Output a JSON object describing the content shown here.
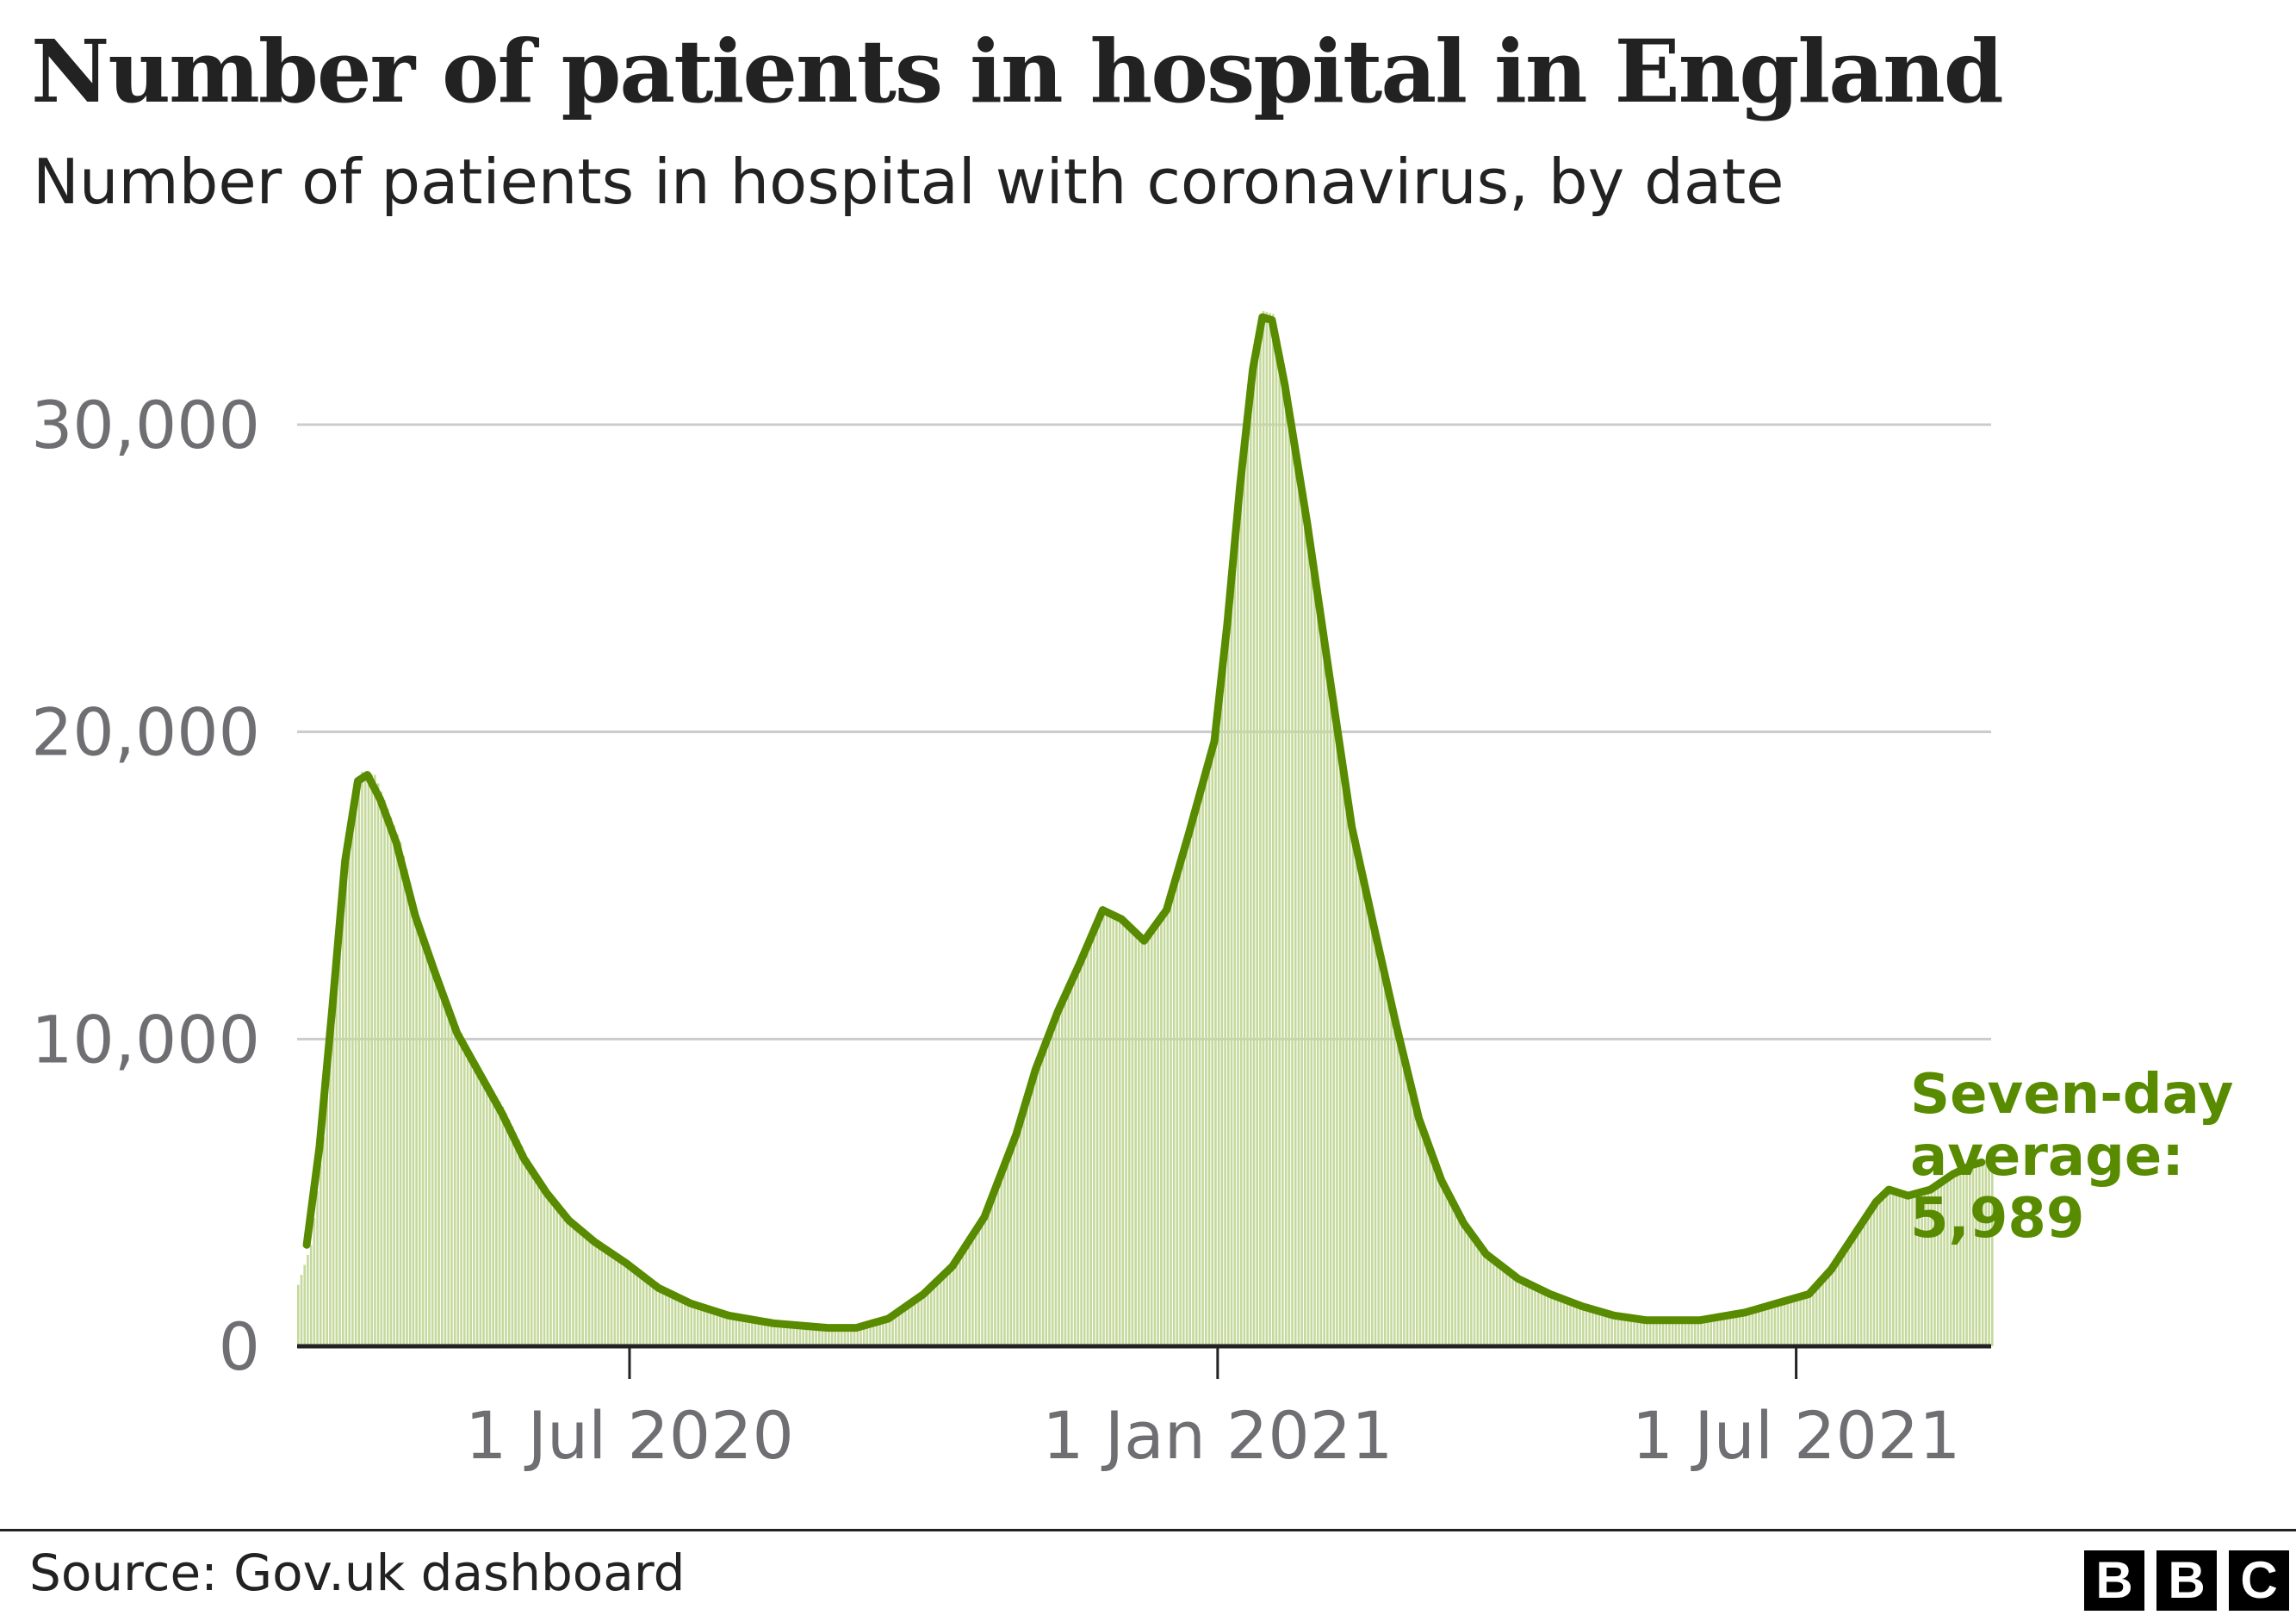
{
  "title": "Number of patients in hospital in England",
  "subtitle": "Number of patients in hospital with coronavirus, by date",
  "source": "Source: Gov.uk dashboard",
  "logo": {
    "letters": [
      "B",
      "B",
      "C"
    ]
  },
  "colors": {
    "bars": "#c5d99c",
    "line": "#588b00",
    "annotation": "#588b00",
    "grid": "#cccccc",
    "axis": "#222222",
    "tick_text": "#6e6e73"
  },
  "chart_data": {
    "type": "bar",
    "title": "Number of patients in hospital in England",
    "subtitle": "Number of patients in hospital with coronavirus, by date",
    "xlabel": "",
    "ylabel": "",
    "x_range": [
      "2020-03-19",
      "2021-08-31"
    ],
    "ylim": [
      0,
      35000
    ],
    "grid": true,
    "y_ticks": [
      {
        "value": 0,
        "label": "0"
      },
      {
        "value": 10000,
        "label": "10,000"
      },
      {
        "value": 20000,
        "label": "20,000"
      },
      {
        "value": 30000,
        "label": "30,000"
      }
    ],
    "x_ticks": [
      {
        "date": "2020-07-01",
        "label": "1 Jul 2020"
      },
      {
        "date": "2021-01-01",
        "label": "1 Jan 2021"
      },
      {
        "date": "2021-07-01",
        "label": "1 Jul 2021"
      }
    ],
    "series": [
      {
        "type": "bar",
        "granularity": "daily",
        "points": [
          [
            "2020-03-19",
            2000
          ],
          [
            "2020-03-23",
            3300
          ],
          [
            "2020-03-27",
            6800
          ],
          [
            "2020-03-31",
            12500
          ],
          [
            "2020-04-04",
            16500
          ],
          [
            "2020-04-08",
            18700
          ],
          [
            "2020-04-12",
            18600
          ],
          [
            "2020-04-16",
            17500
          ],
          [
            "2020-04-20",
            16400
          ],
          [
            "2020-04-25",
            14200
          ],
          [
            "2020-05-01",
            12300
          ],
          [
            "2020-05-08",
            10400
          ],
          [
            "2020-05-15",
            9000
          ],
          [
            "2020-05-22",
            7800
          ],
          [
            "2020-05-29",
            6300
          ],
          [
            "2020-06-05",
            5000
          ],
          [
            "2020-06-12",
            4100
          ],
          [
            "2020-06-20",
            3400
          ],
          [
            "2020-06-30",
            2700
          ],
          [
            "2020-07-10",
            1900
          ],
          [
            "2020-07-20",
            1400
          ],
          [
            "2020-08-01",
            1000
          ],
          [
            "2020-08-15",
            750
          ],
          [
            "2020-09-01",
            600
          ],
          [
            "2020-09-10",
            600
          ],
          [
            "2020-09-20",
            900
          ],
          [
            "2020-10-01",
            1700
          ],
          [
            "2020-10-10",
            2600
          ],
          [
            "2020-10-20",
            4200
          ],
          [
            "2020-10-30",
            6900
          ],
          [
            "2020-11-05",
            9000
          ],
          [
            "2020-11-12",
            11000
          ],
          [
            "2020-11-19",
            12600
          ],
          [
            "2020-11-26",
            14300
          ],
          [
            "2020-12-02",
            14000
          ],
          [
            "2020-12-09",
            13200
          ],
          [
            "2020-12-16",
            14300
          ],
          [
            "2020-12-23",
            16800
          ],
          [
            "2020-12-31",
            20000
          ],
          [
            "2021-01-04",
            24000
          ],
          [
            "2021-01-08",
            28500
          ],
          [
            "2021-01-12",
            32000
          ],
          [
            "2021-01-15",
            33700
          ],
          [
            "2021-01-18",
            33600
          ],
          [
            "2021-01-22",
            31500
          ],
          [
            "2021-01-29",
            27000
          ],
          [
            "2021-02-05",
            22000
          ],
          [
            "2021-02-12",
            17000
          ],
          [
            "2021-02-19",
            13800
          ],
          [
            "2021-02-26",
            10500
          ],
          [
            "2021-03-05",
            7500
          ],
          [
            "2021-03-12",
            5500
          ],
          [
            "2021-03-19",
            4100
          ],
          [
            "2021-03-26",
            3000
          ],
          [
            "2021-04-05",
            2200
          ],
          [
            "2021-04-15",
            1700
          ],
          [
            "2021-04-25",
            1300
          ],
          [
            "2021-05-05",
            1000
          ],
          [
            "2021-05-15",
            850
          ],
          [
            "2021-06-01",
            850
          ],
          [
            "2021-06-15",
            1100
          ],
          [
            "2021-06-25",
            1400
          ],
          [
            "2021-07-05",
            1700
          ],
          [
            "2021-07-12",
            2500
          ],
          [
            "2021-07-19",
            3600
          ],
          [
            "2021-07-26",
            4700
          ],
          [
            "2021-07-30",
            5100
          ],
          [
            "2021-08-05",
            4900
          ],
          [
            "2021-08-12",
            5100
          ],
          [
            "2021-08-19",
            5600
          ],
          [
            "2021-08-25",
            6000
          ],
          [
            "2021-08-31",
            6100
          ]
        ]
      },
      {
        "name": "Seven-day average",
        "type": "line",
        "points": [
          [
            "2020-03-22",
            3300
          ],
          [
            "2020-03-26",
            6500
          ],
          [
            "2020-03-30",
            11000
          ],
          [
            "2020-04-03",
            15800
          ],
          [
            "2020-04-07",
            18400
          ],
          [
            "2020-04-10",
            18600
          ],
          [
            "2020-04-14",
            17800
          ],
          [
            "2020-04-19",
            16400
          ],
          [
            "2020-04-25",
            14000
          ],
          [
            "2020-05-01",
            12200
          ],
          [
            "2020-05-08",
            10200
          ],
          [
            "2020-05-15",
            8900
          ],
          [
            "2020-05-22",
            7600
          ],
          [
            "2020-05-29",
            6100
          ],
          [
            "2020-06-05",
            5000
          ],
          [
            "2020-06-12",
            4100
          ],
          [
            "2020-06-20",
            3400
          ],
          [
            "2020-06-30",
            2700
          ],
          [
            "2020-07-10",
            1900
          ],
          [
            "2020-07-20",
            1400
          ],
          [
            "2020-08-01",
            1000
          ],
          [
            "2020-08-15",
            750
          ],
          [
            "2020-09-01",
            600
          ],
          [
            "2020-09-10",
            600
          ],
          [
            "2020-09-20",
            900
          ],
          [
            "2020-10-01",
            1700
          ],
          [
            "2020-10-10",
            2600
          ],
          [
            "2020-10-20",
            4200
          ],
          [
            "2020-10-30",
            6900
          ],
          [
            "2020-11-05",
            9000
          ],
          [
            "2020-11-12",
            10900
          ],
          [
            "2020-11-19",
            12500
          ],
          [
            "2020-11-26",
            14200
          ],
          [
            "2020-12-02",
            13900
          ],
          [
            "2020-12-09",
            13200
          ],
          [
            "2020-12-16",
            14200
          ],
          [
            "2020-12-23",
            16700
          ],
          [
            "2020-12-31",
            19700
          ],
          [
            "2021-01-04",
            23500
          ],
          [
            "2021-01-08",
            28000
          ],
          [
            "2021-01-12",
            31800
          ],
          [
            "2021-01-15",
            33500
          ],
          [
            "2021-01-18",
            33400
          ],
          [
            "2021-01-22",
            31300
          ],
          [
            "2021-01-29",
            26800
          ],
          [
            "2021-02-05",
            21800
          ],
          [
            "2021-02-12",
            16900
          ],
          [
            "2021-02-19",
            13600
          ],
          [
            "2021-02-26",
            10400
          ],
          [
            "2021-03-05",
            7400
          ],
          [
            "2021-03-12",
            5400
          ],
          [
            "2021-03-19",
            4000
          ],
          [
            "2021-03-26",
            3000
          ],
          [
            "2021-04-05",
            2200
          ],
          [
            "2021-04-15",
            1700
          ],
          [
            "2021-04-25",
            1300
          ],
          [
            "2021-05-05",
            1000
          ],
          [
            "2021-05-15",
            850
          ],
          [
            "2021-06-01",
            850
          ],
          [
            "2021-06-15",
            1100
          ],
          [
            "2021-06-25",
            1400
          ],
          [
            "2021-07-05",
            1700
          ],
          [
            "2021-07-12",
            2500
          ],
          [
            "2021-07-19",
            3600
          ],
          [
            "2021-07-26",
            4700
          ],
          [
            "2021-07-30",
            5100
          ],
          [
            "2021-08-05",
            4900
          ],
          [
            "2021-08-12",
            5100
          ],
          [
            "2021-08-19",
            5600
          ],
          [
            "2021-08-25",
            5900
          ],
          [
            "2021-08-28",
            5989
          ]
        ]
      }
    ],
    "annotations": [
      {
        "lines": [
          "Seven-day",
          "average:",
          "5,989"
        ],
        "anchor_date": "2021-08-28",
        "anchor_value": 5989
      }
    ]
  }
}
